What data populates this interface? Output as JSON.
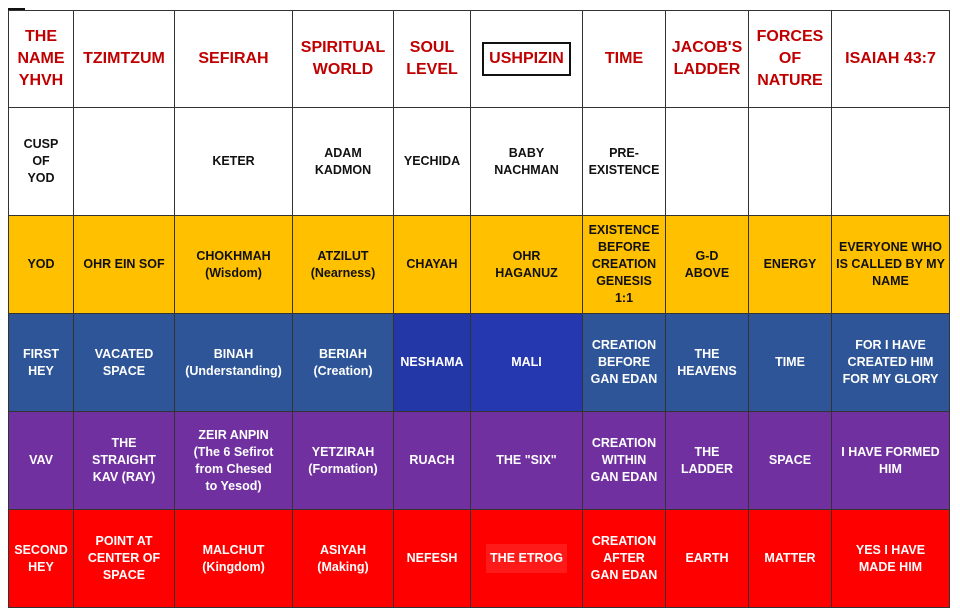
{
  "header": [
    "THE NAME YHVH",
    "TZIMTZUM",
    "SEFIRAH",
    "SPIRITUAL WORLD",
    "SOUL LEVEL",
    "USHPIZIN",
    "TIME",
    "JACOB'S LADDER",
    "FORCES OF NATURE",
    "ISAIAH 43:7"
  ],
  "rows": [
    [
      "CUSP\nOF\nYOD",
      "",
      "KETER",
      "ADAM\nKADMON",
      "YECHIDA",
      "BABY\nNACHMAN",
      "PRE-\nEXISTENCE",
      "",
      "",
      ""
    ],
    [
      "YOD",
      "OHR EIN SOF",
      "CHOKHMAH\n(Wisdom)",
      "ATZILUT\n(Nearness)",
      "CHAYAH",
      "OHR\nHAGANUZ",
      "EXISTENCE\nBEFORE\nCREATION\nGENESIS\n1:1",
      "G-D\nABOVE",
      "ENERGY",
      "EVERYONE WHO\nIS CALLED BY MY\nNAME"
    ],
    [
      "FIRST\nHEY",
      "VACATED\nSPACE",
      "BINAH\n(Understanding)",
      "BERIAH\n(Creation)",
      "NESHAMA",
      "MALI",
      "CREATION\nBEFORE\nGAN EDAN",
      "THE\nHEAVENS",
      "TIME",
      "FOR I HAVE\nCREATED HIM\nFOR MY GLORY"
    ],
    [
      "VAV",
      "THE\nSTRAIGHT\nKAV (RAY)",
      "ZEIR ANPIN\n(The 6 Sefirot\nfrom Chesed\nto Yesod)",
      "YETZIRAH\n(Formation)",
      "RUACH",
      "THE \"SIX\"",
      "CREATION\nWITHIN\nGAN EDAN",
      "THE\nLADDER",
      "SPACE",
      "I HAVE FORMED\nHIM"
    ],
    [
      "SECOND\nHEY",
      "POINT AT\nCENTER OF\nSPACE",
      "MALCHUT\n(Kingdom)",
      "ASIYAH\n(Making)",
      "NEFESH",
      "THE ETROG",
      "CREATION\nAFTER\nGAN EDAN",
      "EARTH",
      "MATTER",
      "YES I HAVE\nMADE HIM"
    ]
  ],
  "colors": {
    "header_text": "#c00000",
    "row_white": "#ffffff",
    "row_yellow": "#ffc000",
    "row_blue": "#2e5597",
    "row_purple": "#7030a0",
    "row_red": "#ff0000",
    "highlight_blue": "#2437a6"
  }
}
